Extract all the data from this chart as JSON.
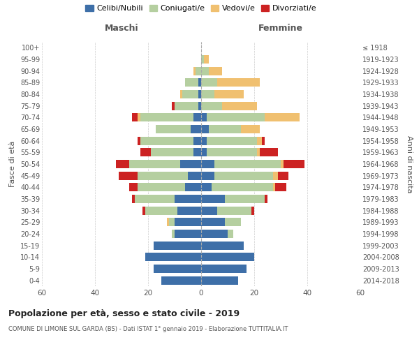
{
  "age_groups": [
    "0-4",
    "5-9",
    "10-14",
    "15-19",
    "20-24",
    "25-29",
    "30-34",
    "35-39",
    "40-44",
    "45-49",
    "50-54",
    "55-59",
    "60-64",
    "65-69",
    "70-74",
    "75-79",
    "80-84",
    "85-89",
    "90-94",
    "95-99",
    "100+"
  ],
  "birth_years": [
    "2014-2018",
    "2009-2013",
    "2004-2008",
    "1999-2003",
    "1994-1998",
    "1989-1993",
    "1984-1988",
    "1979-1983",
    "1974-1978",
    "1969-1973",
    "1964-1968",
    "1959-1963",
    "1954-1958",
    "1949-1953",
    "1944-1948",
    "1939-1943",
    "1934-1938",
    "1929-1933",
    "1924-1928",
    "1919-1923",
    "≤ 1918"
  ],
  "maschi": {
    "celibi": [
      15,
      18,
      21,
      18,
      10,
      10,
      9,
      10,
      6,
      5,
      8,
      3,
      3,
      4,
      3,
      1,
      1,
      1,
      0,
      0,
      0
    ],
    "coniugati": [
      0,
      0,
      0,
      0,
      1,
      2,
      12,
      15,
      18,
      19,
      19,
      16,
      20,
      13,
      20,
      9,
      6,
      5,
      2,
      0,
      0
    ],
    "vedovi": [
      0,
      0,
      0,
      0,
      0,
      1,
      0,
      0,
      0,
      0,
      0,
      0,
      0,
      0,
      1,
      0,
      1,
      0,
      1,
      0,
      0
    ],
    "divorziati": [
      0,
      0,
      0,
      0,
      0,
      0,
      1,
      1,
      3,
      7,
      5,
      4,
      1,
      0,
      2,
      1,
      0,
      0,
      0,
      0,
      0
    ]
  },
  "femmine": {
    "nubili": [
      14,
      17,
      20,
      16,
      10,
      9,
      6,
      9,
      4,
      5,
      5,
      2,
      2,
      3,
      2,
      0,
      0,
      0,
      0,
      0,
      0
    ],
    "coniugate": [
      0,
      0,
      0,
      0,
      2,
      6,
      13,
      15,
      23,
      22,
      25,
      19,
      19,
      12,
      22,
      8,
      5,
      6,
      3,
      1,
      0
    ],
    "vedove": [
      0,
      0,
      0,
      0,
      0,
      0,
      0,
      0,
      1,
      2,
      1,
      1,
      2,
      7,
      13,
      13,
      11,
      16,
      5,
      2,
      0
    ],
    "divorziate": [
      0,
      0,
      0,
      0,
      0,
      0,
      1,
      1,
      4,
      4,
      8,
      7,
      1,
      0,
      0,
      0,
      0,
      0,
      0,
      0,
      0
    ]
  },
  "colors": {
    "celibi": "#3e6fa8",
    "coniugati": "#b5cfa0",
    "vedovi": "#f0c070",
    "divorziati": "#cc2222"
  },
  "title": "Popolazione per età, sesso e stato civile - 2019",
  "subtitle": "COMUNE DI LIMONE SUL GARDA (BS) - Dati ISTAT 1° gennaio 2019 - Elaborazione TUTTITALIA.IT",
  "xlabel_left": "Maschi",
  "xlabel_right": "Femmine",
  "ylabel_left": "Fasce di età",
  "ylabel_right": "Anni di nascita",
  "xlim": 60,
  "legend_labels": [
    "Celibi/Nubili",
    "Coniugati/e",
    "Vedovi/e",
    "Divorziati/e"
  ],
  "background_color": "#ffffff",
  "grid_color": "#cccccc"
}
